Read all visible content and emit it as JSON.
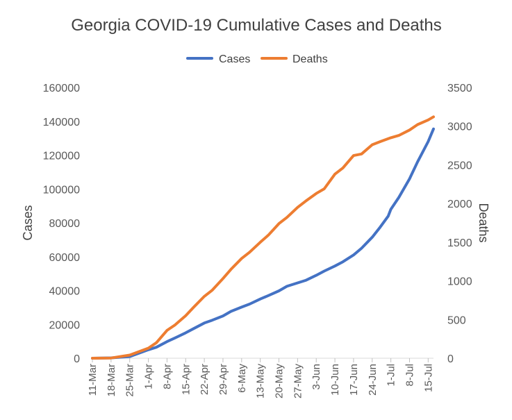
{
  "chart_data": {
    "type": "line",
    "title": "Georgia COVID-19 Cumulative Cases and Deaths",
    "ylabel_left": "Cases",
    "ylabel_right": "Deaths",
    "ylim_left": [
      0,
      160000
    ],
    "ylim_right": [
      0,
      3500
    ],
    "yticks_left": [
      "0",
      "20000",
      "40000",
      "60000",
      "80000",
      "100000",
      "120000",
      "140000",
      "160000"
    ],
    "yticks_right": [
      "0",
      "500",
      "1000",
      "1500",
      "2000",
      "2500",
      "3000",
      "3500"
    ],
    "x_start": "2020-03-11",
    "x_end": "2020-07-17",
    "xticks": [
      {
        "date": "2020-03-11",
        "label": "11-Mar"
      },
      {
        "date": "2020-03-18",
        "label": "18-Mar"
      },
      {
        "date": "2020-03-25",
        "label": "25-Mar"
      },
      {
        "date": "2020-04-01",
        "label": "1-Apr"
      },
      {
        "date": "2020-04-08",
        "label": "8-Apr"
      },
      {
        "date": "2020-04-15",
        "label": "15-Apr"
      },
      {
        "date": "2020-04-22",
        "label": "22-Apr"
      },
      {
        "date": "2020-04-29",
        "label": "29-Apr"
      },
      {
        "date": "2020-05-06",
        "label": "6-May"
      },
      {
        "date": "2020-05-13",
        "label": "13-May"
      },
      {
        "date": "2020-05-20",
        "label": "20-May"
      },
      {
        "date": "2020-05-27",
        "label": "27-May"
      },
      {
        "date": "2020-06-03",
        "label": "3-Jun"
      },
      {
        "date": "2020-06-10",
        "label": "10-Jun"
      },
      {
        "date": "2020-06-17",
        "label": "17-Jun"
      },
      {
        "date": "2020-06-24",
        "label": "24-Jun"
      },
      {
        "date": "2020-07-01",
        "label": "1-Jul"
      },
      {
        "date": "2020-07-08",
        "label": "8-Jul"
      },
      {
        "date": "2020-07-15",
        "label": "15-Jul"
      }
    ],
    "legend_position": "top-center",
    "grid": false,
    "series": [
      {
        "name": "Cases",
        "axis": "left",
        "color": "#4472c4",
        "points": [
          {
            "date": "2020-03-11",
            "y": 0
          },
          {
            "date": "2020-03-18",
            "y": 200
          },
          {
            "date": "2020-03-25",
            "y": 1000
          },
          {
            "date": "2020-04-01",
            "y": 5000
          },
          {
            "date": "2020-04-04",
            "y": 6500
          },
          {
            "date": "2020-04-08",
            "y": 9800
          },
          {
            "date": "2020-04-11",
            "y": 12000
          },
          {
            "date": "2020-04-15",
            "y": 15000
          },
          {
            "date": "2020-04-18",
            "y": 17500
          },
          {
            "date": "2020-04-22",
            "y": 20800
          },
          {
            "date": "2020-04-25",
            "y": 22500
          },
          {
            "date": "2020-04-29",
            "y": 25000
          },
          {
            "date": "2020-05-02",
            "y": 27700
          },
          {
            "date": "2020-05-06",
            "y": 30200
          },
          {
            "date": "2020-05-09",
            "y": 32000
          },
          {
            "date": "2020-05-13",
            "y": 35000
          },
          {
            "date": "2020-05-16",
            "y": 37000
          },
          {
            "date": "2020-05-20",
            "y": 39800
          },
          {
            "date": "2020-05-23",
            "y": 42500
          },
          {
            "date": "2020-05-27",
            "y": 44500
          },
          {
            "date": "2020-05-30",
            "y": 46000
          },
          {
            "date": "2020-06-03",
            "y": 49000
          },
          {
            "date": "2020-06-06",
            "y": 51500
          },
          {
            "date": "2020-06-10",
            "y": 54500
          },
          {
            "date": "2020-06-13",
            "y": 57000
          },
          {
            "date": "2020-06-17",
            "y": 61000
          },
          {
            "date": "2020-06-20",
            "y": 65000
          },
          {
            "date": "2020-06-24",
            "y": 71500
          },
          {
            "date": "2020-06-27",
            "y": 77500
          },
          {
            "date": "2020-06-30",
            "y": 84000
          },
          {
            "date": "2020-07-01",
            "y": 88000
          },
          {
            "date": "2020-07-04",
            "y": 95000
          },
          {
            "date": "2020-07-08",
            "y": 106000
          },
          {
            "date": "2020-07-11",
            "y": 116000
          },
          {
            "date": "2020-07-15",
            "y": 128000
          },
          {
            "date": "2020-07-17",
            "y": 135500
          }
        ]
      },
      {
        "name": "Deaths",
        "axis": "right",
        "color": "#ed7d31",
        "points": [
          {
            "date": "2020-03-11",
            "y": 0
          },
          {
            "date": "2020-03-18",
            "y": 3
          },
          {
            "date": "2020-03-25",
            "y": 40
          },
          {
            "date": "2020-04-01",
            "y": 130
          },
          {
            "date": "2020-04-04",
            "y": 200
          },
          {
            "date": "2020-04-08",
            "y": 360
          },
          {
            "date": "2020-04-11",
            "y": 430
          },
          {
            "date": "2020-04-15",
            "y": 550
          },
          {
            "date": "2020-04-18",
            "y": 660
          },
          {
            "date": "2020-04-22",
            "y": 800
          },
          {
            "date": "2020-04-25",
            "y": 880
          },
          {
            "date": "2020-04-29",
            "y": 1030
          },
          {
            "date": "2020-05-02",
            "y": 1150
          },
          {
            "date": "2020-05-06",
            "y": 1290
          },
          {
            "date": "2020-05-09",
            "y": 1370
          },
          {
            "date": "2020-05-13",
            "y": 1500
          },
          {
            "date": "2020-05-16",
            "y": 1590
          },
          {
            "date": "2020-05-20",
            "y": 1740
          },
          {
            "date": "2020-05-23",
            "y": 1820
          },
          {
            "date": "2020-05-27",
            "y": 1950
          },
          {
            "date": "2020-05-30",
            "y": 2030
          },
          {
            "date": "2020-06-03",
            "y": 2130
          },
          {
            "date": "2020-06-06",
            "y": 2190
          },
          {
            "date": "2020-06-10",
            "y": 2380
          },
          {
            "date": "2020-06-13",
            "y": 2460
          },
          {
            "date": "2020-06-17",
            "y": 2620
          },
          {
            "date": "2020-06-20",
            "y": 2640
          },
          {
            "date": "2020-06-24",
            "y": 2760
          },
          {
            "date": "2020-06-27",
            "y": 2800
          },
          {
            "date": "2020-07-01",
            "y": 2850
          },
          {
            "date": "2020-07-04",
            "y": 2880
          },
          {
            "date": "2020-07-08",
            "y": 2950
          },
          {
            "date": "2020-07-11",
            "y": 3020
          },
          {
            "date": "2020-07-15",
            "y": 3080
          },
          {
            "date": "2020-07-17",
            "y": 3120
          }
        ]
      }
    ]
  }
}
